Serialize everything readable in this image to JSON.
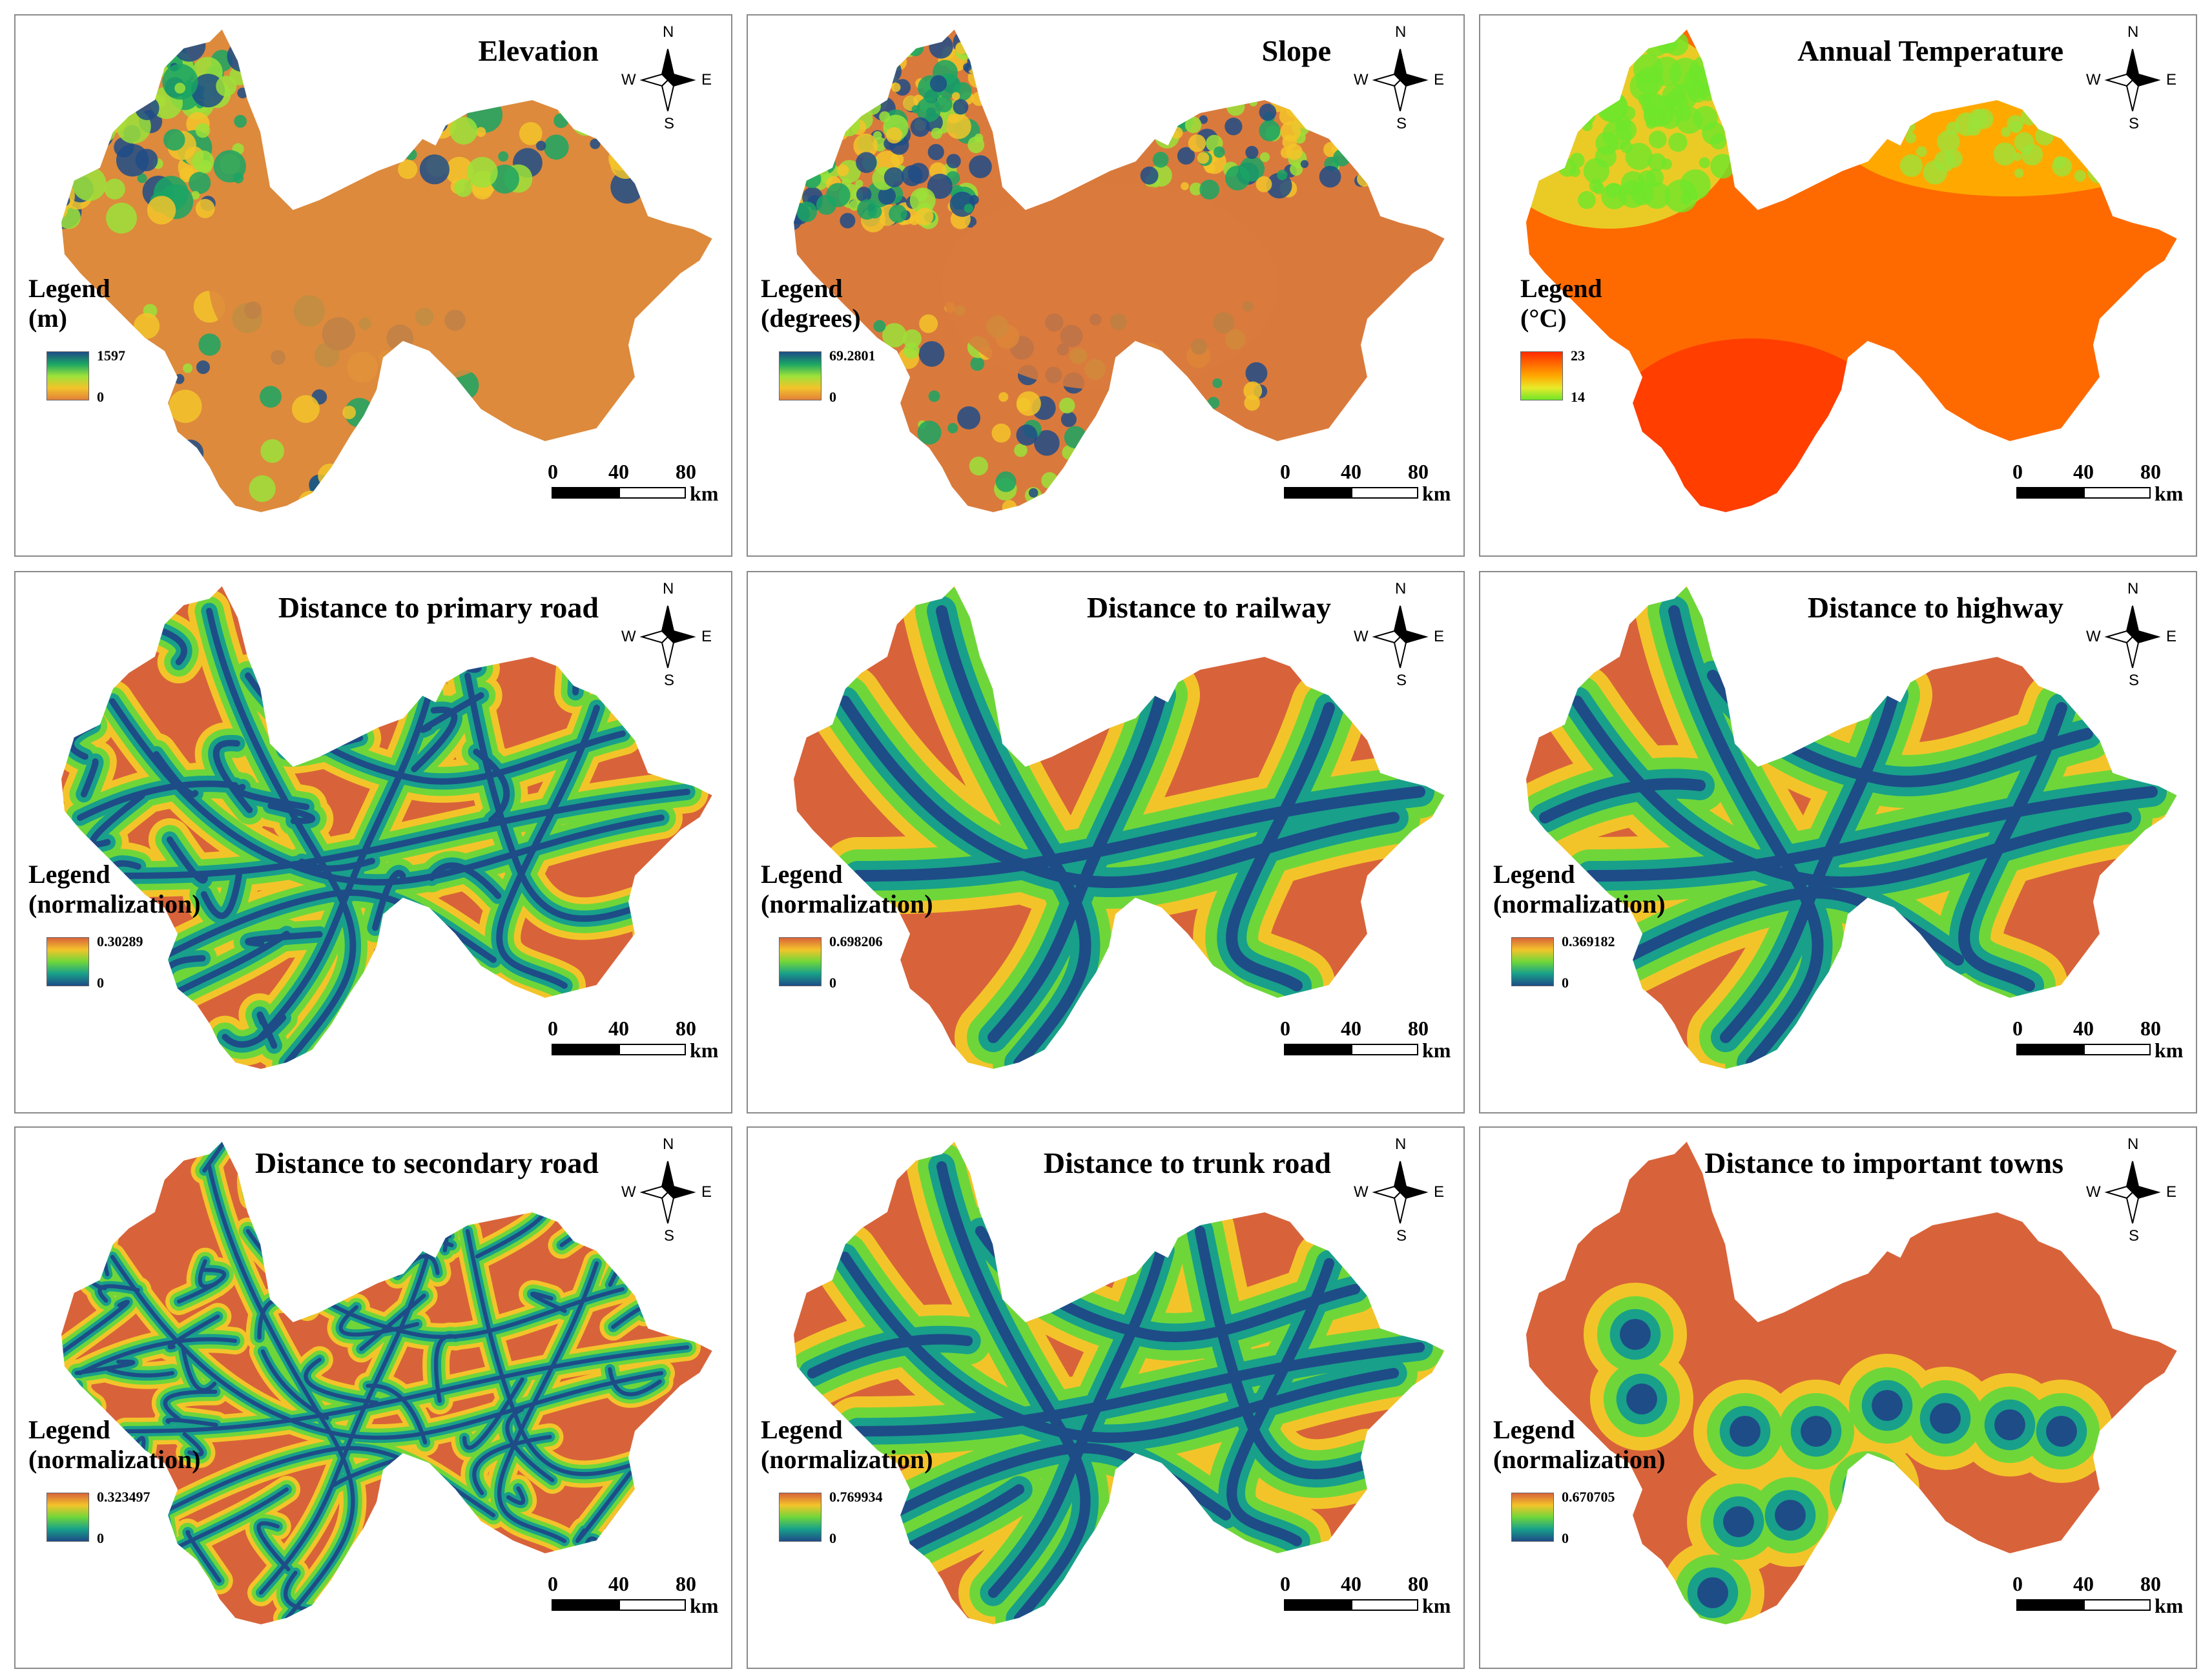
{
  "compass_labels": {
    "n": "N",
    "s": "S",
    "w": "W",
    "e": "E"
  },
  "scale_labels": {
    "t0": "0",
    "t1": "40",
    "t2": "80",
    "unit": "km"
  },
  "panels": [
    {
      "title": "Elevation",
      "legend_line1": "Legend",
      "legend_line2": "(m)",
      "max": "1597",
      "min": "0",
      "colors": [
        "#1e4c87",
        "#1aa564",
        "#9be23a",
        "#f3c42a",
        "#e2803a"
      ],
      "map_style": "elevation"
    },
    {
      "title": "Slope",
      "legend_line1": "Legend",
      "legend_line2": "(degrees)",
      "max": "69.2801",
      "min": "0",
      "colors": [
        "#1e4c87",
        "#1aa564",
        "#9be23a",
        "#f3c42a",
        "#e2803a"
      ],
      "map_style": "slope"
    },
    {
      "title": "Annual Temperature",
      "legend_line1": "Legend",
      "legend_line2": "(°C)",
      "max": "23",
      "min": "14",
      "colors": [
        "#ff2a00",
        "#ff6a00",
        "#ffa800",
        "#e9ea2a",
        "#6ee62a"
      ],
      "map_style": "temperature"
    },
    {
      "title": "Distance to primary road",
      "legend_line1": "Legend",
      "legend_line2": "(normalization)",
      "max": "0.30289",
      "min": "0",
      "colors": [
        "#d8633a",
        "#f3c42a",
        "#6fd63a",
        "#18a08a",
        "#1e4c87"
      ],
      "map_style": "distance"
    },
    {
      "title": "Distance to railway",
      "legend_line1": "Legend",
      "legend_line2": "(normalization)",
      "max": "0.698206",
      "min": "0",
      "colors": [
        "#d8633a",
        "#f3c42a",
        "#6fd63a",
        "#18a08a",
        "#1e4c87"
      ],
      "map_style": "distance"
    },
    {
      "title": "Distance to highway",
      "legend_line1": "Legend",
      "legend_line2": "(normalization)",
      "max": "0.369182",
      "min": "0",
      "colors": [
        "#d8633a",
        "#f3c42a",
        "#6fd63a",
        "#18a08a",
        "#1e4c87"
      ],
      "map_style": "distance"
    },
    {
      "title": "Distance to secondary road",
      "legend_line1": "Legend",
      "legend_line2": "(normalization)",
      "max": "0.323497",
      "min": "0",
      "colors": [
        "#d8633a",
        "#f3c42a",
        "#6fd63a",
        "#18a08a",
        "#1e4c87"
      ],
      "map_style": "distance"
    },
    {
      "title": "Distance to trunk road",
      "legend_line1": "Legend",
      "legend_line2": "(normalization)",
      "max": "0.769934",
      "min": "0",
      "colors": [
        "#d8633a",
        "#f3c42a",
        "#6fd63a",
        "#18a08a",
        "#1e4c87"
      ],
      "map_style": "distance"
    },
    {
      "title": "Distance to important towns",
      "legend_line1": "Legend",
      "legend_line2": "(normalization)",
      "max": "0.670705",
      "min": "0",
      "colors": [
        "#d8633a",
        "#f3c42a",
        "#6fd63a",
        "#18a08a",
        "#1e4c87"
      ],
      "map_style": "distance"
    }
  ]
}
